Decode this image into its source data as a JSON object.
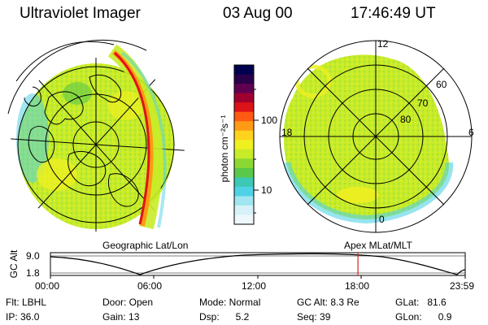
{
  "header": {
    "instrument": "Ultraviolet Imager",
    "date": "03 Aug 00",
    "time": "17:46:49  UT"
  },
  "geo_panel": {
    "label": "Geographic Lat/Lon"
  },
  "apex_panel": {
    "label": "Apex MLat/MLT",
    "mlt_labels": [
      "12",
      "18",
      "6",
      "0"
    ],
    "mlat_labels": [
      "60",
      "70",
      "80"
    ]
  },
  "colorbar": {
    "unit_label": "photon cm⁻²s⁻¹",
    "tick_labels": [
      "100",
      "10"
    ],
    "colors": [
      "#000050",
      "#2a004a",
      "#600050",
      "#a00030",
      "#dc1418",
      "#ff5a14",
      "#ff9a14",
      "#ffd21e",
      "#eef020",
      "#c8ec28",
      "#8cd832",
      "#5ac84a",
      "#3cc8b4",
      "#50d2e6",
      "#a0e6f0",
      "#d6f2f8",
      "#eef8fc"
    ]
  },
  "timeline": {
    "ylabel": "GC Alt",
    "ytick_labels": [
      "9.0",
      "1.8"
    ],
    "xtick_labels": [
      "00:00",
      "06:00",
      "12:00",
      "18:00",
      "23:59"
    ],
    "marker_color": "#e02020"
  },
  "status": {
    "filter": "Flt: LBHL",
    "ip": "IP: 36.0",
    "door": "Door: Open",
    "gain": "Gain: 13",
    "mode": "Mode: Normal",
    "dsp": "Dsp:      5.2",
    "gc_alt": "GC Alt: 8.3 Re",
    "seq": "Seq: 39",
    "glat": "GLat:   81.6",
    "glon": "GLon:      0.9"
  },
  "aurora_colors": {
    "background_green": "#c8ec28",
    "yellow": "#eef020",
    "cyan_edge": "#50d2e6",
    "limb_orange": "#ff9a14",
    "limb_red": "#dc1418"
  }
}
